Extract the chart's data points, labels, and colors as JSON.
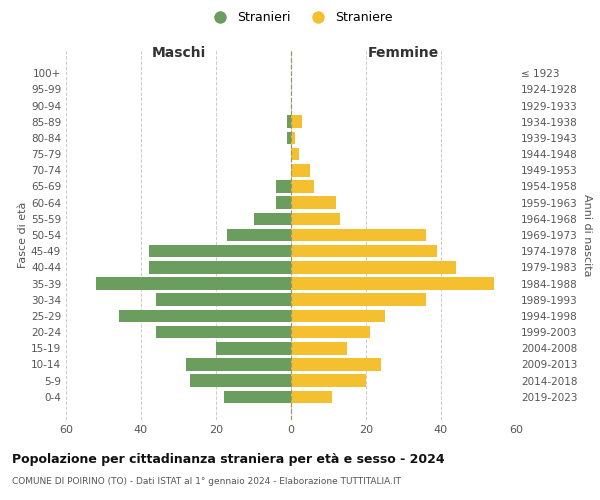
{
  "age_groups": [
    "0-4",
    "5-9",
    "10-14",
    "15-19",
    "20-24",
    "25-29",
    "30-34",
    "35-39",
    "40-44",
    "45-49",
    "50-54",
    "55-59",
    "60-64",
    "65-69",
    "70-74",
    "75-79",
    "80-84",
    "85-89",
    "90-94",
    "95-99",
    "100+"
  ],
  "birth_years": [
    "2019-2023",
    "2014-2018",
    "2009-2013",
    "2004-2008",
    "1999-2003",
    "1994-1998",
    "1989-1993",
    "1984-1988",
    "1979-1983",
    "1974-1978",
    "1969-1973",
    "1964-1968",
    "1959-1963",
    "1954-1958",
    "1949-1953",
    "1944-1948",
    "1939-1943",
    "1934-1938",
    "1929-1933",
    "1924-1928",
    "≤ 1923"
  ],
  "males": [
    18,
    27,
    28,
    20,
    36,
    46,
    36,
    52,
    38,
    38,
    17,
    10,
    4,
    4,
    0,
    0,
    1,
    1,
    0,
    0,
    0
  ],
  "females": [
    11,
    20,
    24,
    15,
    21,
    25,
    36,
    54,
    44,
    39,
    36,
    13,
    12,
    6,
    5,
    2,
    1,
    3,
    0,
    0,
    0
  ],
  "male_color": "#6b9e5e",
  "female_color": "#f5c030",
  "male_label": "Stranieri",
  "female_label": "Straniere",
  "title": "Popolazione per cittadinanza straniera per età e sesso - 2024",
  "subtitle": "COMUNE DI POIRINO (TO) - Dati ISTAT al 1° gennaio 2024 - Elaborazione TUTTITALIA.IT",
  "xlabel_left": "Maschi",
  "xlabel_right": "Femmine",
  "ylabel_left": "Fasce di età",
  "ylabel_right": "Anni di nascita",
  "xlim": 60,
  "background_color": "#ffffff",
  "grid_color": "#cccccc"
}
